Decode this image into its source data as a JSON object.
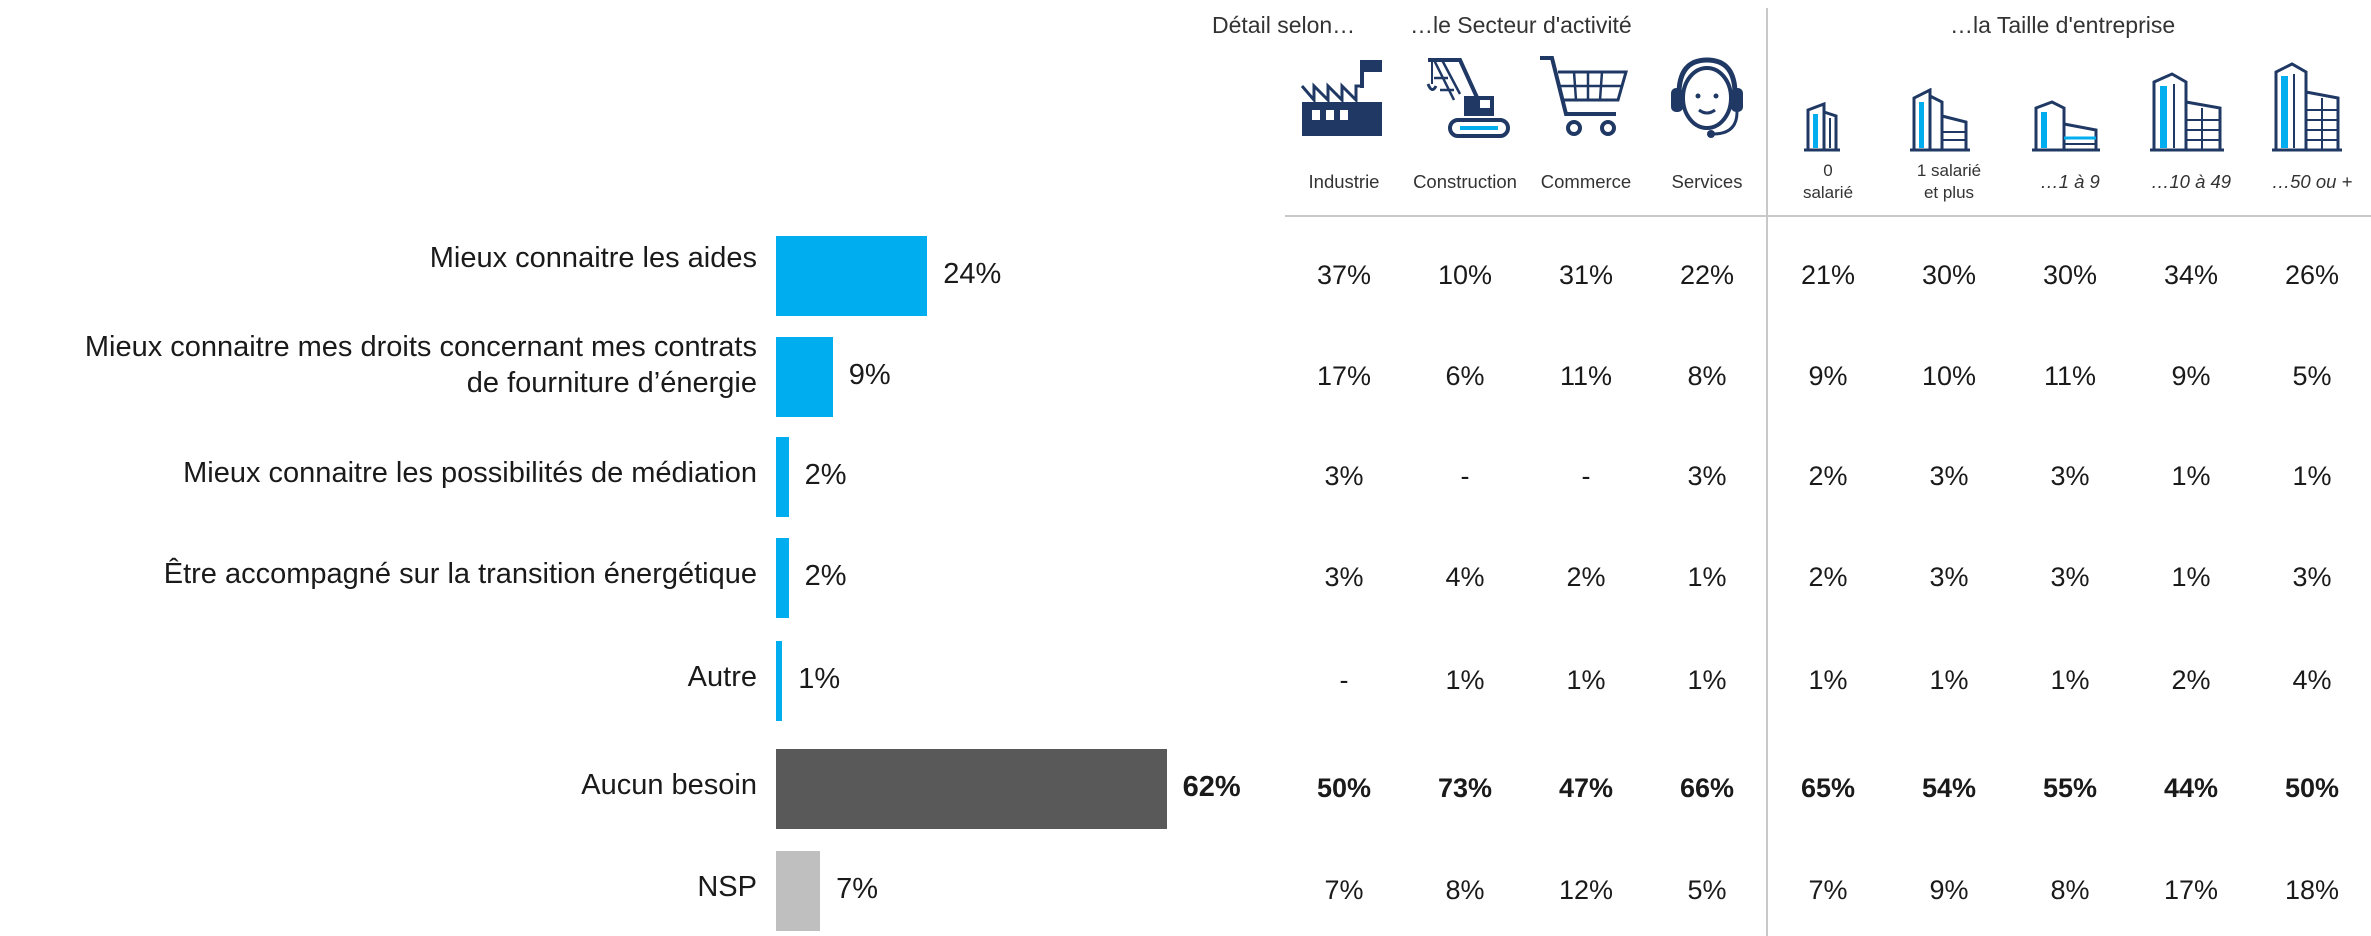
{
  "header": {
    "detail": "Détail selon…",
    "sector": "…le Secteur d'activité",
    "size": "…la Taille d'entreprise"
  },
  "columns": [
    {
      "label": "Industrie",
      "icon": "factory-icon"
    },
    {
      "label": "Construction",
      "icon": "crane-excavator-icon"
    },
    {
      "label": "Commerce",
      "icon": "shopping-cart-icon"
    },
    {
      "label": "Services",
      "icon": "headset-operator-icon"
    },
    {
      "label_lines": [
        "0",
        "salarié"
      ],
      "icon": "building-icon"
    },
    {
      "label_lines": [
        "1 salarié",
        "et plus"
      ],
      "icon": "buildings-icon"
    },
    {
      "label": "…1 à 9",
      "icon": "small-buildings-icon"
    },
    {
      "label": "…10 à 49",
      "icon": "medium-buildings-icon"
    },
    {
      "label": "…50 ou +",
      "icon": "large-buildings-icon"
    }
  ],
  "colors": {
    "bar_primary": "#00aeef",
    "bar_none": "#595959",
    "bar_nsp": "#bfbfbf",
    "icon_navy": "#1f3864",
    "icon_cyan": "#00aeef"
  },
  "chart_data": {
    "type": "bar",
    "orientation": "horizontal",
    "categories": [
      "Mieux connaitre les aides",
      "Mieux connaitre mes droits concernant mes contrats de fourniture d’énergie",
      "Mieux connaitre les possibilités de médiation",
      "Être accompagné sur la transition énergétique",
      "Autre",
      "Aucun besoin",
      "NSP"
    ],
    "category_lines": [
      [
        "Mieux connaitre les aides"
      ],
      [
        "Mieux connaitre mes droits concernant mes contrats",
        "de fourniture d’énergie"
      ],
      [
        "Mieux connaitre les possibilités de médiation"
      ],
      [
        "Être accompagné sur la transition énergétique"
      ],
      [
        "Autre"
      ],
      [
        "Aucun besoin"
      ],
      [
        "NSP"
      ]
    ],
    "values": [
      24,
      9,
      2,
      2,
      1,
      62,
      7
    ],
    "value_labels": [
      "24%",
      "9%",
      "2%",
      "2%",
      "1%",
      "62%",
      "7%"
    ],
    "bar_colors": [
      "#00aeef",
      "#00aeef",
      "#00aeef",
      "#00aeef",
      "#00aeef",
      "#595959",
      "#bfbfbf"
    ],
    "bold_rows": [
      5
    ],
    "xlim": [
      0,
      100
    ],
    "table": [
      [
        "37%",
        "10%",
        "31%",
        "22%",
        "21%",
        "30%",
        "30%",
        "34%",
        "26%"
      ],
      [
        "17%",
        "6%",
        "11%",
        "8%",
        "9%",
        "10%",
        "11%",
        "9%",
        "5%"
      ],
      [
        "3%",
        "-",
        "-",
        "3%",
        "2%",
        "3%",
        "3%",
        "1%",
        "1%"
      ],
      [
        "3%",
        "4%",
        "2%",
        "1%",
        "2%",
        "3%",
        "3%",
        "1%",
        "3%"
      ],
      [
        "-",
        "1%",
        "1%",
        "1%",
        "1%",
        "1%",
        "1%",
        "2%",
        "4%"
      ],
      [
        "50%",
        "73%",
        "47%",
        "66%",
        "65%",
        "54%",
        "55%",
        "44%",
        "50%"
      ],
      [
        "7%",
        "8%",
        "12%",
        "5%",
        "7%",
        "9%",
        "8%",
        "17%",
        "18%"
      ]
    ]
  }
}
